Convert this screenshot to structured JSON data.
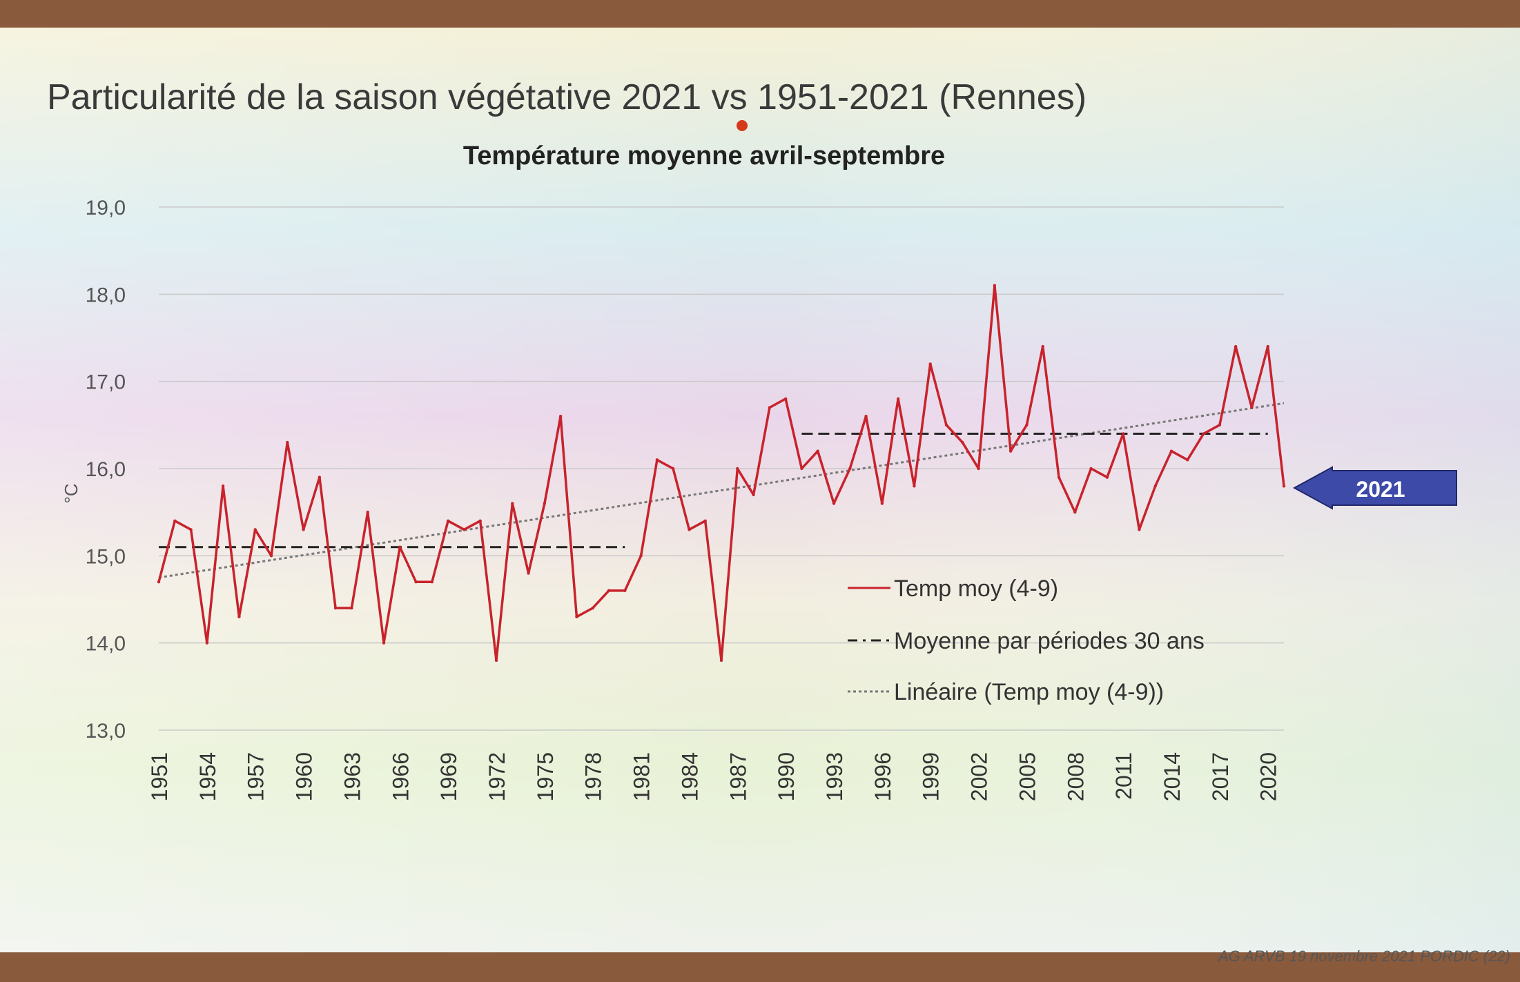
{
  "slide": {
    "title": "Particularité de la saison végétative 2021 vs 1951-2021 (Rennes)",
    "footer": "AG ARVB 19 novembre 2021 PORDIC (22)"
  },
  "callout": {
    "label": "2021",
    "color": "#3d4aa8"
  },
  "chart_data": {
    "type": "line",
    "title": "Température moyenne avril-septembre",
    "xlabel": "",
    "ylabel": "°C",
    "ylim": [
      13.0,
      19.0
    ],
    "yticks": [
      "13,0",
      "14,0",
      "15,0",
      "16,0",
      "17,0",
      "18,0",
      "19,0"
    ],
    "xtick_labels": [
      "1951",
      "1954",
      "1957",
      "1960",
      "1963",
      "1966",
      "1969",
      "1972",
      "1975",
      "1978",
      "1981",
      "1984",
      "1987",
      "1990",
      "1993",
      "1996",
      "1999",
      "2002",
      "2005",
      "2008",
      "2011",
      "2014",
      "2017",
      "2020"
    ],
    "grid": true,
    "legend_position": "bottom-right",
    "legend": [
      "Temp moy (4-9)",
      "Moyenne par périodes 30 ans",
      "Linéaire (Temp moy (4-9))"
    ],
    "series": [
      {
        "name": "Temp moy (4-9)",
        "color": "#c8232c",
        "style": "solid",
        "x": [
          1951,
          1952,
          1953,
          1954,
          1955,
          1956,
          1957,
          1958,
          1959,
          1960,
          1961,
          1962,
          1963,
          1964,
          1965,
          1966,
          1967,
          1968,
          1969,
          1970,
          1971,
          1972,
          1973,
          1974,
          1975,
          1976,
          1977,
          1978,
          1979,
          1980,
          1981,
          1982,
          1983,
          1984,
          1985,
          1986,
          1987,
          1988,
          1989,
          1990,
          1991,
          1992,
          1993,
          1994,
          1995,
          1996,
          1997,
          1998,
          1999,
          2000,
          2001,
          2002,
          2003,
          2004,
          2005,
          2006,
          2007,
          2008,
          2009,
          2010,
          2011,
          2012,
          2013,
          2014,
          2015,
          2016,
          2017,
          2018,
          2019,
          2020,
          2021
        ],
        "y": [
          14.7,
          15.4,
          15.3,
          14.0,
          15.8,
          14.3,
          15.3,
          15.0,
          16.3,
          15.3,
          15.9,
          14.4,
          14.4,
          15.5,
          14.0,
          15.1,
          14.7,
          14.7,
          15.4,
          15.3,
          15.4,
          13.8,
          15.6,
          14.8,
          15.6,
          16.6,
          14.3,
          14.4,
          14.6,
          14.6,
          15.0,
          16.1,
          16.0,
          15.3,
          15.4,
          13.8,
          16.0,
          15.7,
          16.7,
          16.8,
          16.0,
          16.2,
          15.6,
          16.0,
          16.6,
          15.6,
          16.8,
          15.8,
          17.2,
          16.5,
          16.3,
          16.0,
          18.1,
          16.2,
          16.5,
          17.4,
          15.9,
          15.5,
          16.0,
          15.9,
          16.4,
          15.3,
          15.8,
          16.2,
          16.1,
          16.4,
          16.5,
          17.4,
          16.7,
          17.4,
          15.8
        ]
      },
      {
        "name": "Moyenne par périodes 30 ans",
        "color": "#222222",
        "style": "dashed",
        "segments": [
          {
            "x": [
              1951,
              1980
            ],
            "y": [
              15.1,
              15.1
            ]
          },
          {
            "x": [
              1991,
              2020
            ],
            "y": [
              16.4,
              16.4
            ]
          }
        ]
      },
      {
        "name": "Linéaire (Temp moy (4-9))",
        "color": "#777777",
        "style": "dotted",
        "x": [
          1951,
          2021
        ],
        "y": [
          14.75,
          16.75
        ]
      }
    ]
  }
}
